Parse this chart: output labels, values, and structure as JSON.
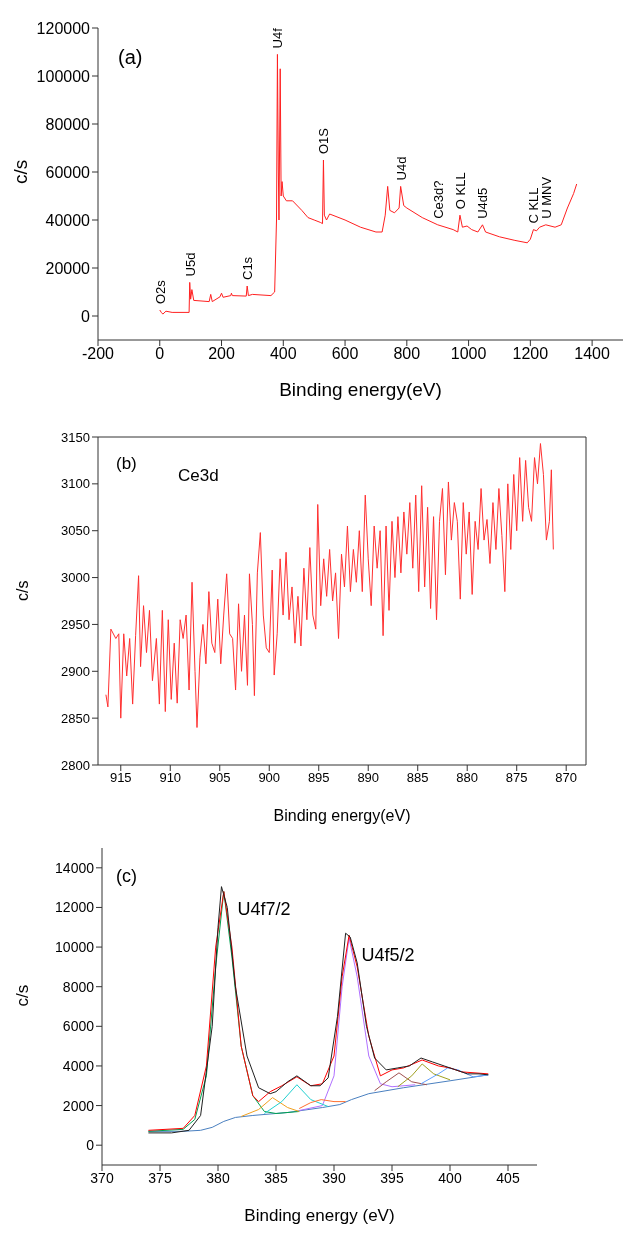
{
  "chart_data": [
    {
      "type": "line",
      "xlabel": "Binding energy(eV)",
      "ylabel": "c/s",
      "xlim": [
        -200,
        1500
      ],
      "xticks": [
        -200,
        0,
        200,
        400,
        600,
        800,
        1000,
        1200,
        1400
      ],
      "ylim": [
        -10000,
        120000
      ],
      "yticks": [
        0,
        20000,
        40000,
        60000,
        80000,
        100000,
        120000
      ],
      "annotations": [
        "(a)",
        {
          "text": "O2s",
          "x": 0,
          "y": 2500
        },
        {
          "text": "U5d",
          "x": 97,
          "y": 14000
        },
        {
          "text": "C1s",
          "x": 283,
          "y": 12500
        },
        {
          "text": "U4f",
          "x": 381,
          "y": 109000
        },
        {
          "text": "O1S",
          "x": 530,
          "y": 65000
        },
        {
          "text": "U4d",
          "x": 780,
          "y": 54000
        },
        {
          "text": "Ce3d?",
          "x": 900,
          "y": 38000
        },
        {
          "text": "O KLL",
          "x": 972,
          "y": 42000
        },
        {
          "text": "U4d5",
          "x": 1045,
          "y": 38000
        },
        {
          "text": "C KLL",
          "x": 1210,
          "y": 36000
        },
        {
          "text": "U MNV",
          "x": 1250,
          "y": 38000
        }
      ],
      "series": [
        {
          "color": "#ff2020",
          "x": [
            0,
            5,
            10,
            20,
            40,
            95,
            97,
            100,
            104,
            110,
            160,
            165,
            170,
            195,
            200,
            205,
            230,
            232,
            235,
            280,
            283,
            287,
            300,
            360,
            372,
            378,
            381,
            384,
            386,
            390,
            393,
            396,
            400,
            410,
            430,
            460,
            480,
            500,
            520,
            527,
            530,
            533,
            540,
            550,
            600,
            650,
            700,
            720,
            730,
            738,
            745,
            760,
            775,
            780,
            790,
            800,
            850,
            900,
            950,
            965,
            972,
            980,
            995,
            1010,
            1030,
            1045,
            1055,
            1100,
            1150,
            1190,
            1200,
            1210,
            1220,
            1230,
            1250,
            1280,
            1300,
            1320,
            1340,
            1350
          ],
          "values": [
            2500,
            1500,
            800,
            2000,
            1500,
            1500,
            14000,
            7000,
            11000,
            6500,
            6000,
            9000,
            6000,
            8000,
            9500,
            7800,
            8500,
            9500,
            8500,
            8300,
            12500,
            8500,
            9000,
            8500,
            10000,
            40000,
            109000,
            60000,
            40000,
            103000,
            50000,
            56000,
            50000,
            48000,
            48000,
            44000,
            41000,
            40000,
            39000,
            38500,
            65000,
            42000,
            40000,
            42500,
            40000,
            37000,
            35000,
            35000,
            42000,
            54000,
            44000,
            43000,
            45000,
            54000,
            46000,
            45000,
            41000,
            38000,
            36000,
            35000,
            42000,
            37000,
            37500,
            36000,
            35000,
            38000,
            35000,
            33000,
            31500,
            30500,
            32000,
            36000,
            35500,
            37000,
            38000,
            37000,
            38000,
            45000,
            51000,
            55000
          ]
        }
      ]
    },
    {
      "type": "line",
      "xlabel": "Binding energy(eV)",
      "ylabel": "c/s",
      "xlim": [
        917.3,
        868
      ],
      "xticks": [
        915,
        910,
        905,
        900,
        895,
        890,
        885,
        880,
        875,
        870
      ],
      "ylim": [
        2800,
        3150
      ],
      "yticks": [
        2800,
        2850,
        2900,
        2950,
        3000,
        3050,
        3100,
        3150
      ],
      "annotations": [
        "(b)",
        "Ce3d"
      ],
      "series": [
        {
          "color": "#ff3030",
          "x": [
            916.5,
            916.3,
            916,
            915.5,
            915.2,
            915,
            914.7,
            914.4,
            914.1,
            913.8,
            913.5,
            913.2,
            913,
            912.7,
            912.4,
            912.1,
            911.8,
            911.4,
            911.1,
            910.8,
            910.5,
            910.2,
            909.9,
            909.6,
            909.3,
            909,
            908.7,
            908.4,
            908.1,
            907.8,
            907.5,
            907.3,
            907,
            906.7,
            906.4,
            906.1,
            905.8,
            905.5,
            905.2,
            904.9,
            904.6,
            904.3,
            904,
            903.7,
            903.4,
            903.1,
            902.8,
            902.5,
            902.2,
            902,
            901.7,
            901.5,
            901.2,
            900.9,
            900.6,
            900.3,
            900,
            899.7,
            899.5,
            899.2,
            898.9,
            898.6,
            898.3,
            898,
            897.7,
            897.4,
            897.1,
            896.8,
            896.5,
            896.2,
            895.9,
            895.6,
            895.3,
            895.1,
            894.8,
            894.5,
            894.2,
            893.9,
            893.6,
            893.3,
            893,
            892.7,
            892.4,
            892.1,
            891.8,
            891.5,
            891.2,
            890.9,
            890.6,
            890.3,
            890,
            889.7,
            889.4,
            889.1,
            888.8,
            888.5,
            888.2,
            887.9,
            887.6,
            887.3,
            887,
            886.7,
            886.4,
            886.1,
            885.8,
            885.5,
            885.2,
            884.9,
            884.6,
            884.3,
            884,
            883.7,
            883.4,
            883.1,
            882.8,
            882.5,
            882.2,
            881.9,
            881.6,
            881.3,
            881,
            880.7,
            880.4,
            880.1,
            879.8,
            879.5,
            879.2,
            878.9,
            878.6,
            878.3,
            878,
            877.7,
            877.4,
            877.1,
            876.8,
            876.5,
            876.2,
            875.9,
            875.6,
            875.3,
            875,
            874.7,
            874.4,
            874.1,
            873.8,
            873.5,
            873.2,
            872.9,
            872.6,
            872.3,
            872,
            871.7,
            871.5,
            871.3
          ],
          "values": [
            2875,
            2862,
            2945,
            2935,
            2940,
            2850,
            2940,
            2895,
            2935,
            2865,
            2938,
            3002,
            2905,
            2970,
            2920,
            2965,
            2890,
            2935,
            2865,
            2965,
            2857,
            2955,
            2870,
            2930,
            2866,
            2955,
            2935,
            2960,
            2880,
            2995,
            2900,
            2840,
            2915,
            2950,
            2908,
            2985,
            2930,
            2920,
            2977,
            2908,
            2960,
            3004,
            2940,
            2935,
            2880,
            2972,
            2900,
            2960,
            2885,
            3004,
            2950,
            2874,
            3005,
            3048,
            2960,
            2925,
            2920,
            3008,
            2896,
            2940,
            3020,
            2960,
            3027,
            2955,
            2990,
            2930,
            2980,
            2927,
            3010,
            2955,
            3032,
            2960,
            2945,
            3078,
            2970,
            3020,
            2980,
            3030,
            2975,
            3005,
            2935,
            3025,
            2990,
            3055,
            2985,
            3030,
            2995,
            3050,
            2985,
            3088,
            3020,
            2970,
            3055,
            3010,
            3050,
            2938,
            3055,
            2965,
            3060,
            3000,
            3065,
            3005,
            3070,
            3025,
            3080,
            3010,
            3088,
            2985,
            3098,
            2990,
            3075,
            2967,
            3065,
            2955,
            3060,
            3095,
            3003,
            3102,
            3040,
            3080,
            3060,
            2977,
            3080,
            3025,
            3070,
            2982,
            3060,
            3030,
            3095,
            3040,
            3062,
            3015,
            3080,
            3030,
            3095,
            3045,
            2985,
            3100,
            3030,
            3110,
            3050,
            3128,
            3060,
            3125,
            3075,
            3060,
            3128,
            3100,
            3143,
            3110,
            3040,
            3060,
            3115,
            3030
          ]
        }
      ]
    },
    {
      "type": "line",
      "xlabel": "Binding energy (eV)",
      "ylabel": "c/s",
      "xlim": [
        370,
        407.5
      ],
      "xticks": [
        370,
        375,
        380,
        385,
        390,
        395,
        400,
        405
      ],
      "ylim": [
        -1000,
        15000
      ],
      "yticks": [
        0,
        2000,
        4000,
        6000,
        8000,
        10000,
        12000,
        14000
      ],
      "annotations": [
        "(c)",
        {
          "text": "U4f7/2",
          "x": 380.3,
          "y": 13050
        },
        {
          "text": "U4f5/2",
          "x": 391,
          "y": 10700
        }
      ],
      "series": [
        {
          "color": "#4a80c0",
          "x": [
            374,
            377,
            378.5,
            379.5,
            380.5,
            381.5,
            383,
            386,
            389,
            390.5,
            391.5,
            393,
            396,
            400,
            403.3
          ],
          "values": [
            700,
            700,
            750,
            900,
            1200,
            1400,
            1500,
            1650,
            1900,
            2050,
            2300,
            2600,
            2900,
            3250,
            3550
          ]
        },
        {
          "color": "#00a050",
          "x": [
            374,
            377,
            378,
            379,
            379.8,
            380.5,
            381.2,
            382,
            383,
            384,
            385,
            387
          ],
          "values": [
            700,
            800,
            1300,
            3500,
            9000,
            12800,
            9500,
            5000,
            2500,
            1700,
            1600,
            1700
          ]
        },
        {
          "color": "#b070ff",
          "x": [
            387,
            389,
            390,
            390.7,
            391.3,
            392,
            393,
            394,
            395,
            397
          ],
          "values": [
            1750,
            2000,
            3500,
            8000,
            10450,
            8500,
            4500,
            3100,
            2950,
            3050
          ]
        },
        {
          "color": "#f0a020",
          "x": [
            382,
            383.5,
            384.7,
            386,
            387
          ],
          "values": [
            1450,
            1800,
            2400,
            1900,
            1700
          ]
        },
        {
          "color": "#20d0d0",
          "x": [
            384,
            385.5,
            386.8,
            388,
            389.5
          ],
          "values": [
            1600,
            2200,
            3050,
            2300,
            1950
          ]
        },
        {
          "color": "#ff7030",
          "x": [
            387,
            388,
            388.9,
            390,
            391
          ],
          "values": [
            1850,
            2150,
            2300,
            2200,
            2200
          ]
        },
        {
          "color": "#a05050",
          "x": [
            393.5,
            394.5,
            395.6,
            396.7,
            398
          ],
          "values": [
            2750,
            3200,
            3650,
            3200,
            3050
          ]
        },
        {
          "color": "#a0a020",
          "x": [
            395.5,
            396.7,
            397.6,
            398.6,
            400
          ],
          "values": [
            2950,
            3500,
            4100,
            3600,
            3300
          ]
        },
        {
          "color": "#60a0ff",
          "x": [
            397.5,
            399,
            399.8,
            400.7,
            402,
            403.3
          ],
          "values": [
            3100,
            3600,
            3900,
            3800,
            3450,
            3550
          ]
        },
        {
          "color": "#ff0000",
          "x": [
            374,
            377,
            378,
            379,
            379.8,
            380.5,
            381.2,
            382,
            383,
            383.5,
            384.5,
            385.5,
            386.8,
            388,
            389,
            390,
            390.7,
            391.3,
            392,
            393,
            394,
            395,
            396,
            397.6,
            399,
            400,
            401,
            403.3
          ],
          "values": [
            750,
            850,
            1500,
            4000,
            10000,
            12800,
            10000,
            5000,
            2500,
            2200,
            2700,
            3000,
            3450,
            3000,
            3100,
            4500,
            8500,
            10600,
            9000,
            5500,
            3500,
            3800,
            3900,
            4300,
            4000,
            3900,
            3700,
            3600
          ]
        },
        {
          "color": "#202020",
          "x": [
            374,
            376,
            377.5,
            378.5,
            379.5,
            380,
            380.3,
            380.8,
            381.5,
            382.5,
            383.5,
            384.5,
            385,
            386,
            386.8,
            388,
            388.8,
            389.5,
            390.3,
            391,
            391.4,
            392,
            392.8,
            393.5,
            394.5,
            395.5,
            396.5,
            397.5,
            398.5,
            399.5,
            400.5,
            401.5,
            402.5,
            403.3
          ],
          "values": [
            620,
            620,
            750,
            1500,
            6000,
            11000,
            13050,
            12000,
            8000,
            4500,
            2900,
            2600,
            2700,
            3200,
            3500,
            3000,
            3000,
            3400,
            6500,
            10700,
            10500,
            9200,
            6000,
            4400,
            3800,
            3900,
            4000,
            4400,
            4200,
            4000,
            3800,
            3600,
            3600,
            3550
          ]
        }
      ]
    }
  ]
}
